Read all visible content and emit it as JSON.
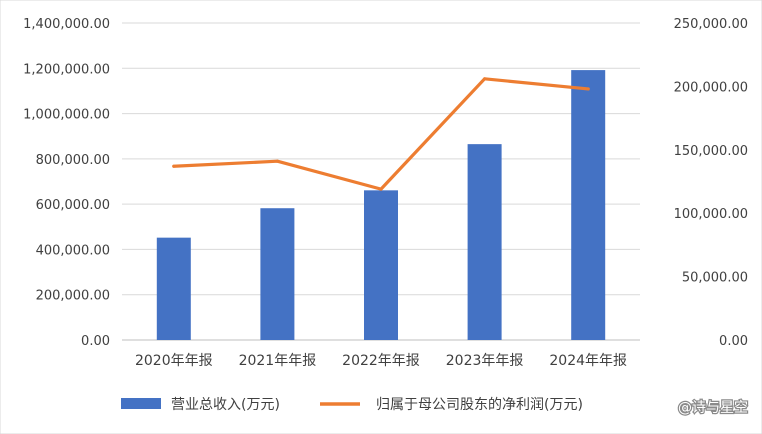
{
  "chart_data": {
    "type": "bar",
    "categories": [
      "2020年年报",
      "2021年年报",
      "2022年年报",
      "2023年年报",
      "2024年年报"
    ],
    "series": [
      {
        "name": "营业总收入(万元)",
        "type": "bar",
        "axis": "left",
        "color": "#4472C4",
        "values": [
          452000,
          582000,
          661000,
          865000,
          1192000
        ]
      },
      {
        "name": "归属于母公司股东的净利润(万元)",
        "type": "line",
        "axis": "right",
        "color": "#ED7D31",
        "values": [
          137000,
          141000,
          119000,
          206000,
          198000
        ]
      }
    ],
    "y_left": {
      "min": 0,
      "max": 1400000,
      "step": 200000,
      "ticks": [
        "0.00",
        "200,000.00",
        "400,000.00",
        "600,000.00",
        "800,000.00",
        "1,000,000.00",
        "1,200,000.00",
        "1,400,000.00"
      ]
    },
    "y_right": {
      "min": 0,
      "max": 250000,
      "step": 50000,
      "ticks": [
        "0.00",
        "50,000.00",
        "100,000.00",
        "150,000.00",
        "200,000.00",
        "250,000.00"
      ]
    },
    "grid": true,
    "legend_position": "bottom",
    "watermark": "@诗与星空"
  }
}
